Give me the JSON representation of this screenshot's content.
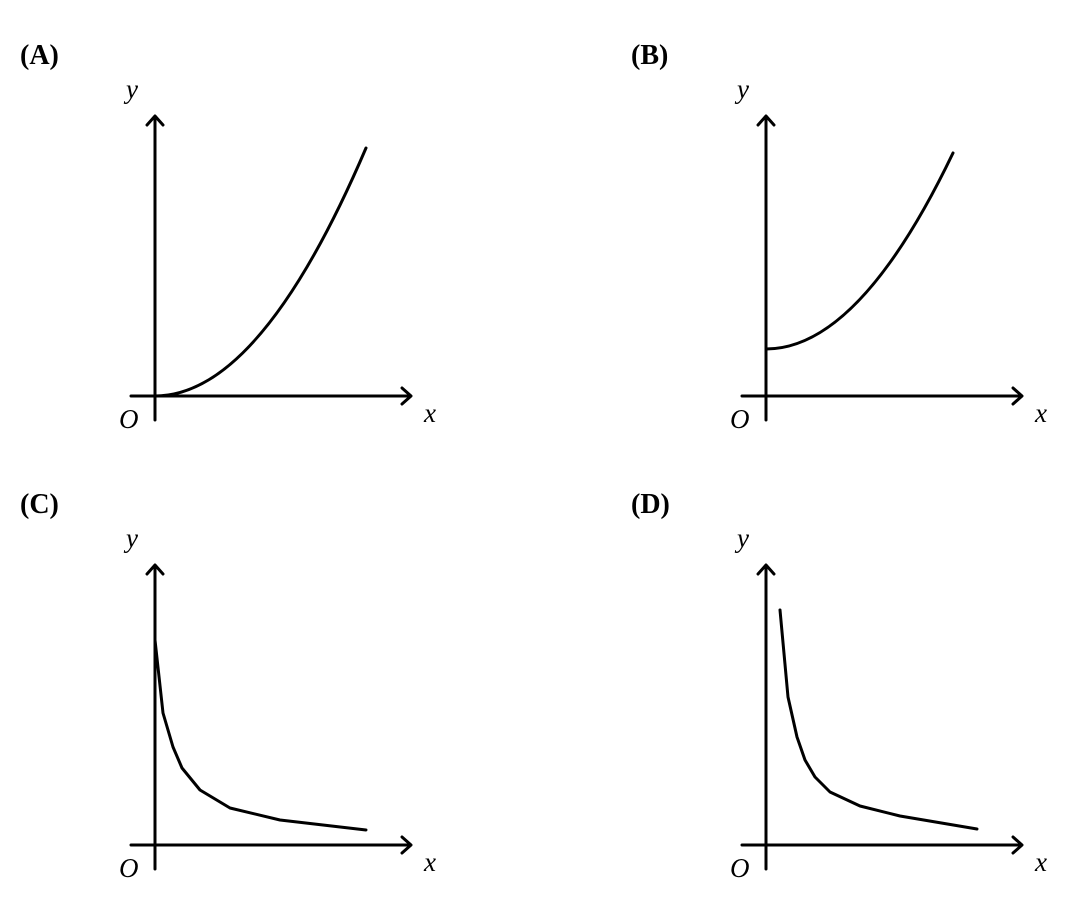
{
  "panels": [
    {
      "label": "(A)",
      "y": "y",
      "x": "x",
      "origin": "O"
    },
    {
      "label": "(B)",
      "y": "y",
      "x": "x",
      "origin": "O"
    },
    {
      "label": "(C)",
      "y": "y",
      "x": "x",
      "origin": "O"
    },
    {
      "label": "(D)",
      "y": "y",
      "x": "x",
      "origin": "O"
    }
  ]
}
